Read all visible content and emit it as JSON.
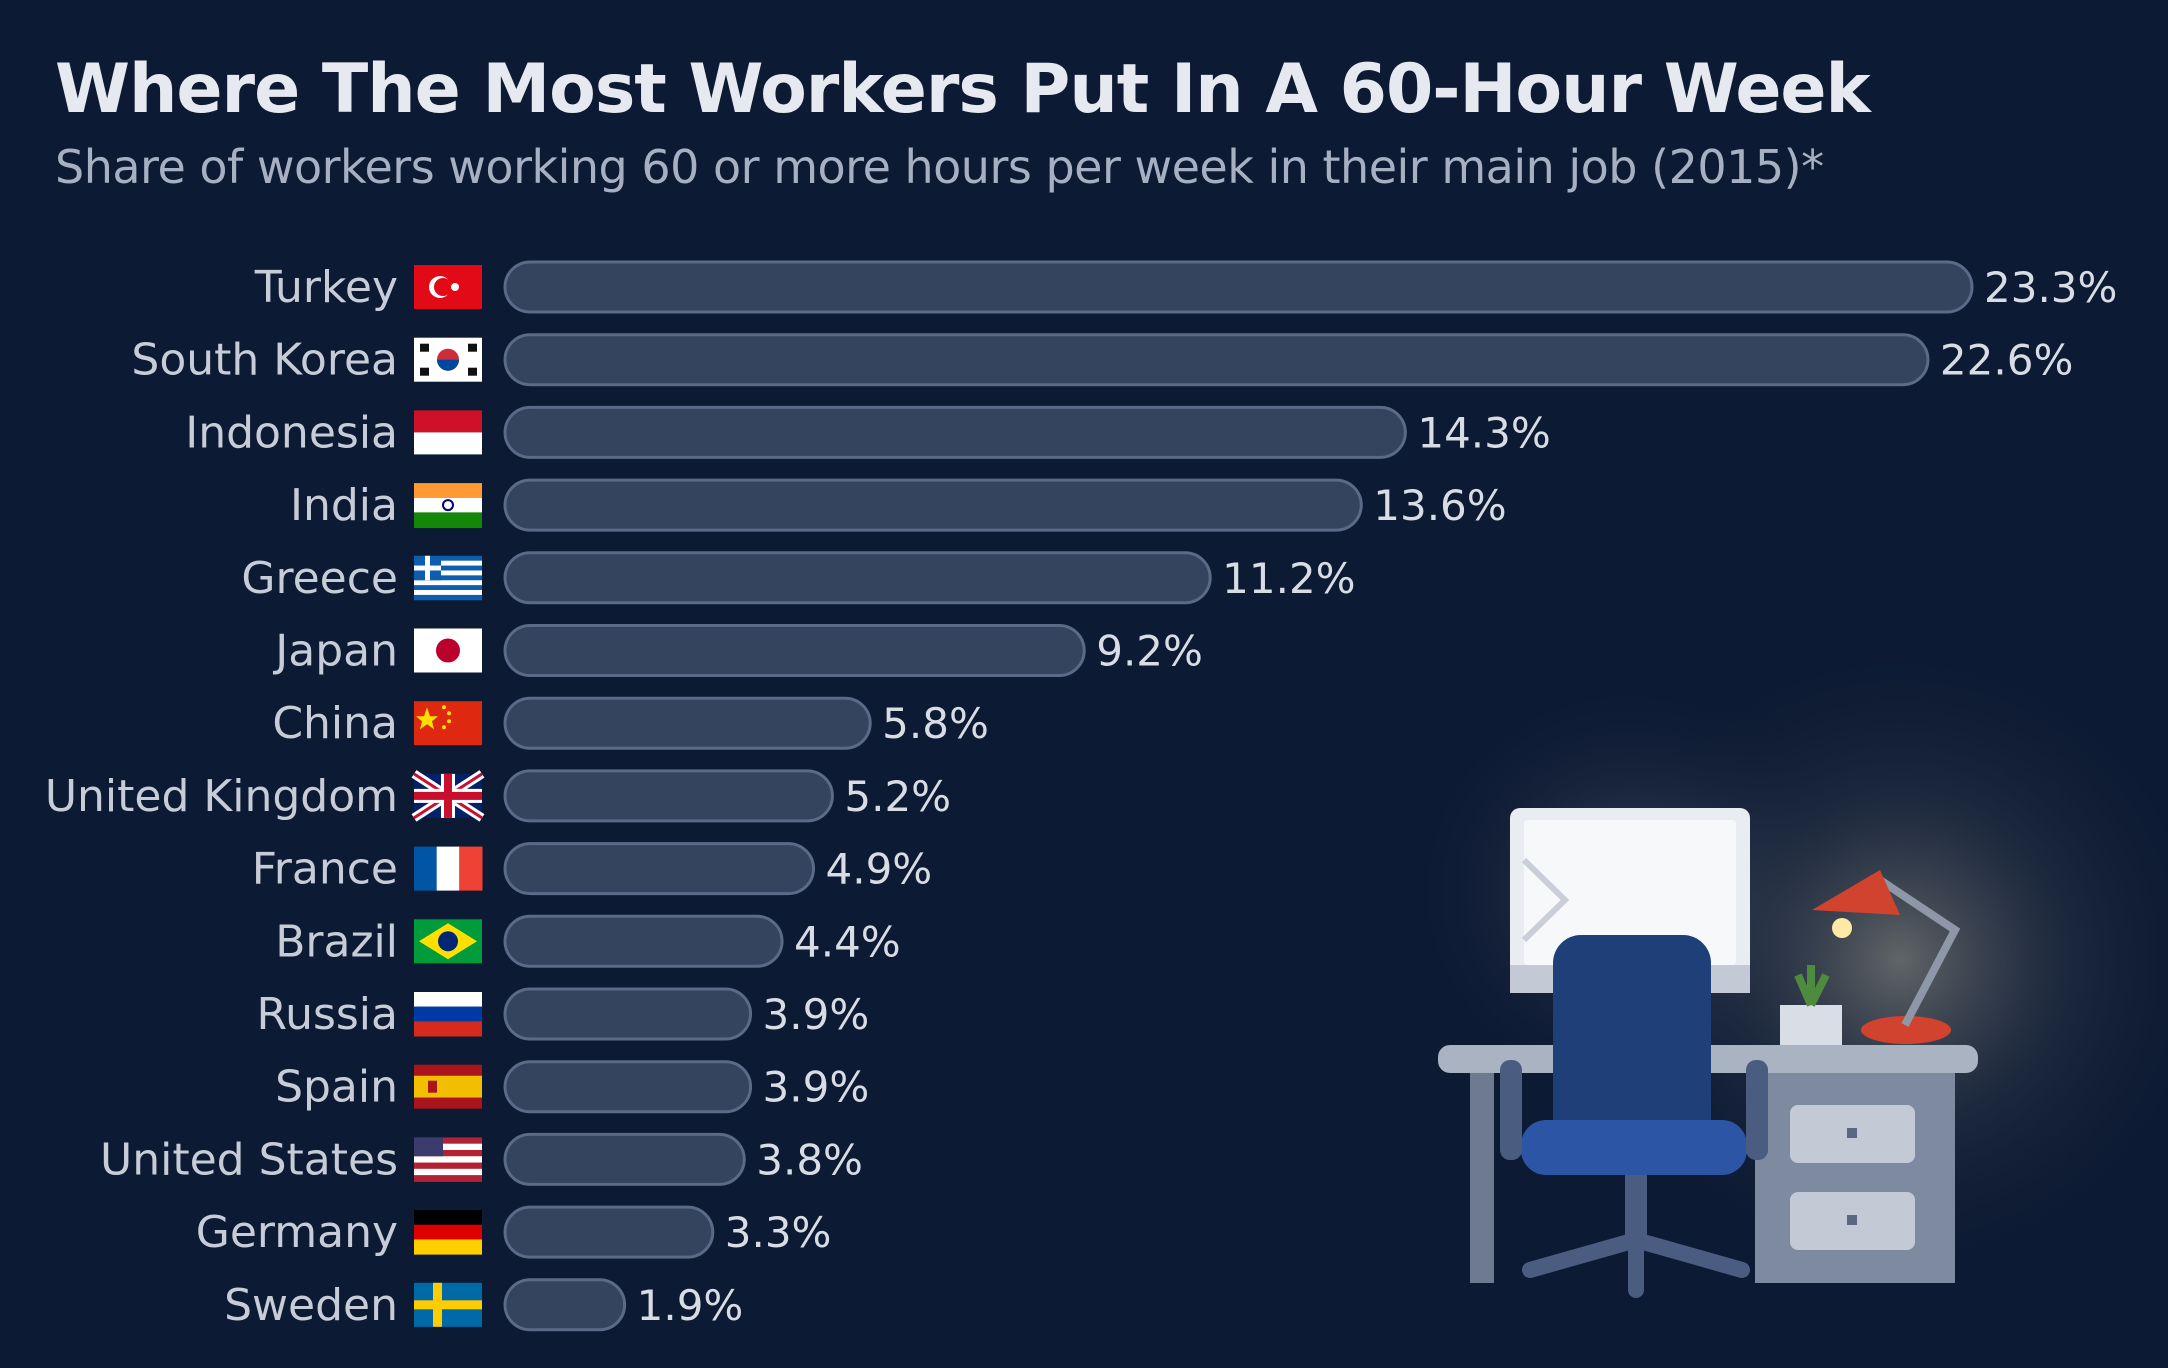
{
  "colors": {
    "background": "#0d1a33",
    "bar": "#34435e",
    "bar_border": "#5a6a87",
    "title": "#e6e9ef",
    "subtitle": "#a7b0c2",
    "label": "#c7cdd8"
  },
  "chart_data": {
    "type": "bar",
    "orientation": "horizontal",
    "title": "Where The Most Workers Put In A 60-Hour Week",
    "subtitle": "Share of workers working 60 or more hours per week in their main job (2015)*",
    "categories": [
      "Turkey",
      "South Korea",
      "Indonesia",
      "India",
      "Greece",
      "Japan",
      "China",
      "United Kingdom",
      "France",
      "Brazil",
      "Russia",
      "Spain",
      "United States",
      "Germany",
      "Sweden"
    ],
    "values": [
      23.3,
      22.6,
      14.3,
      13.6,
      11.2,
      9.2,
      5.8,
      5.2,
      4.9,
      4.4,
      3.9,
      3.9,
      3.8,
      3.3,
      1.9
    ],
    "value_labels": [
      "23.3%",
      "22.6%",
      "14.3%",
      "13.6%",
      "11.2%",
      "9.2%",
      "5.8%",
      "5.2%",
      "4.9%",
      "4.4%",
      "3.9%",
      "3.9%",
      "3.8%",
      "3.3%",
      "1.9%"
    ],
    "flag_icons": [
      "turkey-flag-icon",
      "south-korea-flag-icon",
      "indonesia-flag-icon",
      "india-flag-icon",
      "greece-flag-icon",
      "japan-flag-icon",
      "china-flag-icon",
      "united-kingdom-flag-icon",
      "france-flag-icon",
      "brazil-flag-icon",
      "russia-flag-icon",
      "spain-flag-icon",
      "united-states-flag-icon",
      "germany-flag-icon",
      "sweden-flag-icon"
    ],
    "unit": "%",
    "xlim": [
      0,
      23.3
    ],
    "grid": false,
    "legend": "none"
  },
  "illustration": {
    "icon": "desk-computer-lamp-icon"
  }
}
